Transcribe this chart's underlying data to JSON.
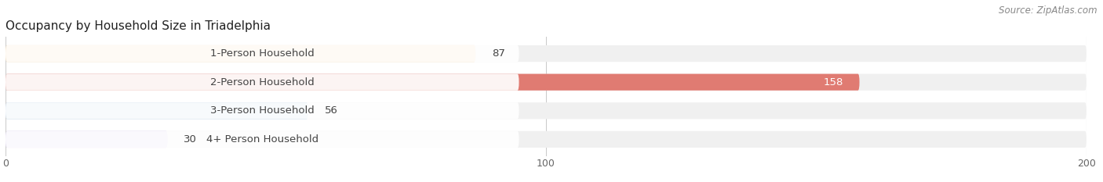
{
  "title": "Occupancy by Household Size in Triadelphia",
  "source": "Source: ZipAtlas.com",
  "categories": [
    "1-Person Household",
    "2-Person Household",
    "3-Person Household",
    "4+ Person Household"
  ],
  "values": [
    87,
    158,
    56,
    30
  ],
  "bar_colors": [
    "#f5c98a",
    "#e07b72",
    "#a8c4e0",
    "#c9b8e8"
  ],
  "bar_bg_color": "#f0f0f0",
  "label_bg_color": "#ffffff",
  "value_label_colors": [
    "#555555",
    "#ffffff",
    "#555555",
    "#555555"
  ],
  "xlim": [
    0,
    200
  ],
  "xticks": [
    0,
    100,
    200
  ],
  "figsize": [
    14.06,
    2.33
  ],
  "dpi": 100,
  "title_fontsize": 11,
  "bar_label_fontsize": 9.5,
  "tick_fontsize": 9,
  "cat_fontsize": 9.5,
  "source_fontsize": 8.5,
  "bar_height": 0.58,
  "bg_color": "#ffffff",
  "grid_color": "#cccccc",
  "text_color": "#444444"
}
